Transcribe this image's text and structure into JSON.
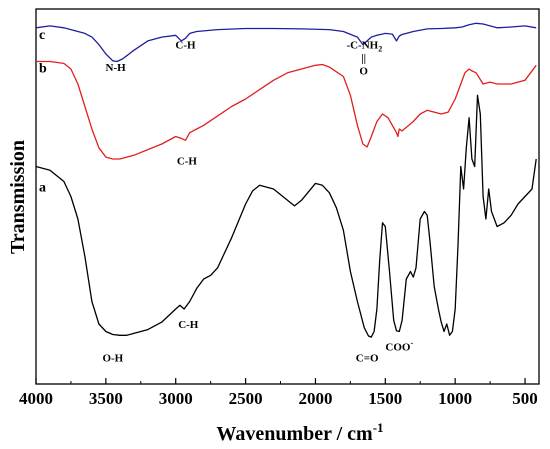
{
  "chart_data": {
    "type": "line",
    "title": "",
    "xlabel": "Wavenumber / cm",
    "xlabel_superscript": "-1",
    "ylabel": "Transmission",
    "xlim": [
      4000,
      400
    ],
    "xdirection": "reversed",
    "ylim": [
      0,
      1
    ],
    "yticks_visible": false,
    "grid": false,
    "xticks": [
      4000,
      3500,
      3000,
      2500,
      2000,
      1500,
      1000,
      500
    ],
    "xtick_labels": [
      "4000",
      "3500",
      "3000",
      "2500",
      "2000",
      "1500",
      "1000",
      "500"
    ],
    "series": [
      {
        "label": "c",
        "color": "#1f1fa0",
        "x": [
          4000,
          3900,
          3800,
          3700,
          3650,
          3600,
          3550,
          3500,
          3450,
          3420,
          3380,
          3300,
          3200,
          3100,
          3000,
          2960,
          2930,
          2900,
          2850,
          2700,
          2500,
          2300,
          2100,
          1900,
          1800,
          1700,
          1660,
          1630,
          1600,
          1560,
          1500,
          1450,
          1420,
          1400,
          1380,
          1300,
          1200,
          1100,
          1000,
          950,
          900,
          850,
          800,
          750,
          700,
          600,
          500,
          420
        ],
        "y": [
          0.95,
          0.955,
          0.95,
          0.94,
          0.935,
          0.925,
          0.905,
          0.88,
          0.862,
          0.86,
          0.867,
          0.89,
          0.915,
          0.925,
          0.93,
          0.915,
          0.922,
          0.935,
          0.94,
          0.945,
          0.948,
          0.948,
          0.947,
          0.945,
          0.94,
          0.925,
          0.905,
          0.915,
          0.925,
          0.93,
          0.935,
          0.933,
          0.915,
          0.928,
          0.932,
          0.94,
          0.947,
          0.948,
          0.95,
          0.952,
          0.958,
          0.962,
          0.96,
          0.955,
          0.95,
          0.952,
          0.955,
          0.95
        ]
      },
      {
        "label": "b",
        "color": "#e02020",
        "x": [
          4000,
          3900,
          3800,
          3750,
          3700,
          3650,
          3600,
          3550,
          3500,
          3450,
          3400,
          3300,
          3200,
          3100,
          3000,
          2960,
          2930,
          2900,
          2850,
          2800,
          2700,
          2600,
          2500,
          2400,
          2300,
          2200,
          2100,
          2000,
          1950,
          1900,
          1800,
          1750,
          1700,
          1660,
          1630,
          1600,
          1560,
          1520,
          1480,
          1450,
          1420,
          1410,
          1400,
          1380,
          1300,
          1250,
          1200,
          1150,
          1100,
          1050,
          1000,
          960,
          930,
          900,
          880,
          850,
          800,
          750,
          700,
          600,
          500,
          420
        ],
        "y": [
          0.86,
          0.86,
          0.855,
          0.84,
          0.8,
          0.74,
          0.68,
          0.63,
          0.605,
          0.6,
          0.6,
          0.61,
          0.625,
          0.64,
          0.66,
          0.655,
          0.65,
          0.67,
          0.68,
          0.69,
          0.715,
          0.74,
          0.76,
          0.785,
          0.81,
          0.83,
          0.84,
          0.85,
          0.852,
          0.845,
          0.82,
          0.77,
          0.69,
          0.64,
          0.632,
          0.66,
          0.7,
          0.72,
          0.71,
          0.69,
          0.67,
          0.66,
          0.68,
          0.675,
          0.7,
          0.72,
          0.73,
          0.725,
          0.72,
          0.725,
          0.76,
          0.8,
          0.83,
          0.84,
          0.835,
          0.83,
          0.8,
          0.805,
          0.8,
          0.8,
          0.81,
          0.85
        ]
      },
      {
        "label": "a",
        "color": "#000000",
        "x": [
          4000,
          3900,
          3800,
          3750,
          3700,
          3650,
          3600,
          3550,
          3500,
          3450,
          3400,
          3350,
          3300,
          3200,
          3100,
          3000,
          2970,
          2940,
          2900,
          2850,
          2800,
          2750,
          2700,
          2600,
          2500,
          2450,
          2400,
          2300,
          2200,
          2150,
          2100,
          2000,
          1950,
          1900,
          1850,
          1800,
          1750,
          1700,
          1650,
          1620,
          1600,
          1580,
          1560,
          1540,
          1520,
          1500,
          1470,
          1440,
          1420,
          1400,
          1380,
          1350,
          1320,
          1300,
          1280,
          1250,
          1220,
          1200,
          1180,
          1150,
          1120,
          1100,
          1080,
          1060,
          1040,
          1020,
          1000,
          980,
          960,
          940,
          920,
          900,
          880,
          860,
          840,
          820,
          800,
          780,
          760,
          740,
          700,
          650,
          600,
          550,
          500,
          450,
          420
        ],
        "y": [
          0.58,
          0.57,
          0.54,
          0.5,
          0.44,
          0.34,
          0.22,
          0.16,
          0.14,
          0.132,
          0.13,
          0.13,
          0.135,
          0.145,
          0.165,
          0.2,
          0.21,
          0.2,
          0.22,
          0.255,
          0.28,
          0.29,
          0.31,
          0.39,
          0.48,
          0.515,
          0.53,
          0.52,
          0.49,
          0.475,
          0.49,
          0.535,
          0.53,
          0.51,
          0.47,
          0.41,
          0.3,
          0.22,
          0.15,
          0.128,
          0.125,
          0.14,
          0.2,
          0.33,
          0.43,
          0.42,
          0.3,
          0.17,
          0.142,
          0.14,
          0.17,
          0.28,
          0.3,
          0.285,
          0.31,
          0.44,
          0.46,
          0.45,
          0.38,
          0.26,
          0.2,
          0.165,
          0.14,
          0.16,
          0.13,
          0.14,
          0.2,
          0.37,
          0.58,
          0.52,
          0.63,
          0.71,
          0.6,
          0.58,
          0.77,
          0.72,
          0.5,
          0.44,
          0.52,
          0.46,
          0.42,
          0.43,
          0.45,
          0.48,
          0.5,
          0.52,
          0.6
        ]
      }
    ],
    "annotations": [
      {
        "text": "N-H",
        "x": 3430,
        "y": 0.835
      },
      {
        "text": "C-H",
        "x": 2930,
        "y": 0.895
      },
      {
        "text": "-C-NH",
        "sub": "2",
        "x": 1650,
        "y": 0.895
      },
      {
        "text": "||",
        "x": 1655,
        "y": 0.86
      },
      {
        "text": "O",
        "x": 1655,
        "y": 0.825
      },
      {
        "text": "C-H",
        "x": 2920,
        "y": 0.585
      },
      {
        "text": "C-H",
        "x": 2910,
        "y": 0.15
      },
      {
        "text": "O-H",
        "x": 3450,
        "y": 0.06
      },
      {
        "text": "C=O",
        "x": 1630,
        "y": 0.06
      },
      {
        "text": "COO",
        "sup": "-",
        "x": 1400,
        "y": 0.09
      }
    ]
  }
}
